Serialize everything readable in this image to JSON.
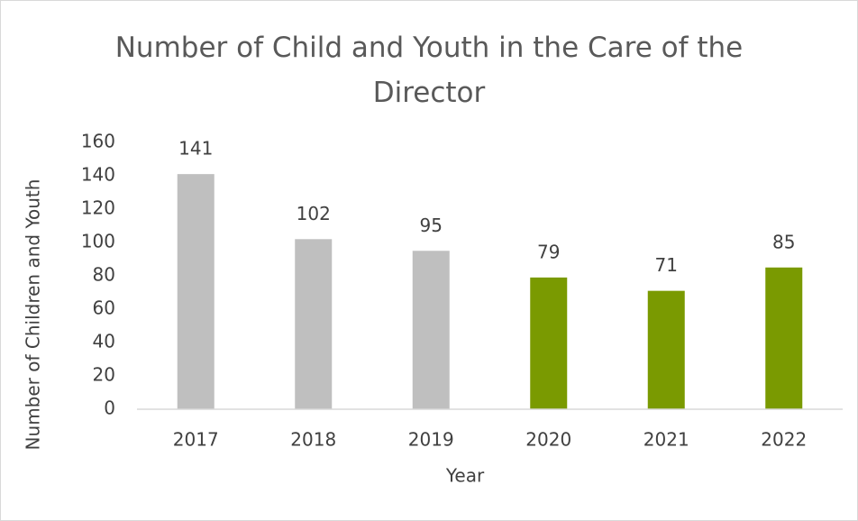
{
  "chart_data": {
    "type": "bar",
    "title": "Number of Child and Youth in the Care of the Director",
    "x_label": "Year",
    "y_label": "Number of Children and Youth",
    "categories": [
      "2017",
      "2018",
      "2019",
      "2020",
      "2021",
      "2022"
    ],
    "values": [
      141,
      102,
      95,
      79,
      71,
      85
    ],
    "colors": [
      "#bfbfbf",
      "#bfbfbf",
      "#bfbfbf",
      "#7a9a01",
      "#7a9a01",
      "#7a9a01"
    ],
    "ylim": [
      0,
      160
    ],
    "yticks": [
      0,
      20,
      40,
      60,
      80,
      100,
      120,
      140,
      160
    ],
    "grid": false
  }
}
